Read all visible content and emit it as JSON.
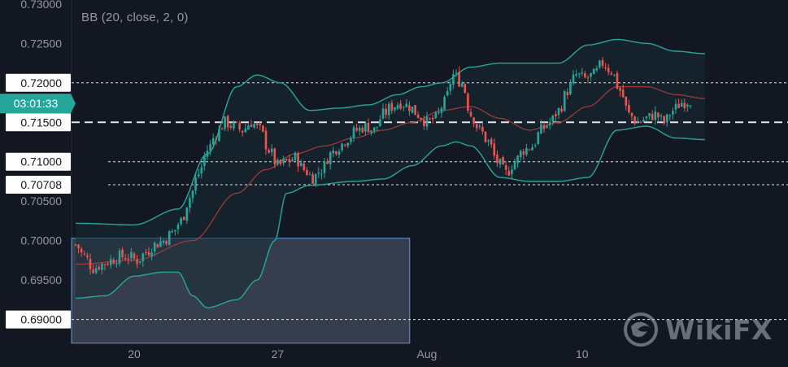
{
  "indicator": {
    "label": "BB (20, close, 2, 0)"
  },
  "watermark": {
    "text": "WikiFX",
    "icon": "wikifx-logo-icon"
  },
  "colors": {
    "background": "#131722",
    "up": "#26a69a",
    "down": "#ef5350",
    "bb_band": "#26a69a",
    "bb_basis": "#a83a3a",
    "bb_fill": "#1a2c33",
    "price_tag_bg": "#26a69a",
    "tick_text": "#9598a1",
    "label_bg": "#ffffff",
    "label_text": "#131722",
    "zone_fill": "#434c5e",
    "zone_border": "#5b9bd5"
  },
  "chart_data": {
    "type": "candlestick",
    "y_range": [
      0.688,
      0.7305
    ],
    "y_ticks": [
      "0.73000",
      "0.72500",
      "0.72000",
      "0.71500",
      "0.71000",
      "0.70500",
      "0.70000",
      "0.69500",
      "0.69000"
    ],
    "x_labels": [
      {
        "label": "20",
        "index": 20
      },
      {
        "label": "27",
        "index": 69
      },
      {
        "label": "Aug",
        "index": 120
      },
      {
        "label": "10",
        "index": 173
      }
    ],
    "countdown_label": "03:01:33",
    "current_price": 0.718,
    "level_labels": [
      {
        "label": "0.72000",
        "value": 0.72,
        "style": "dotted"
      },
      {
        "label": "0.71500",
        "value": 0.715,
        "style": "dashed"
      },
      {
        "label": "0.71000",
        "value": 0.71,
        "style": "dotted"
      },
      {
        "label": "0.70708",
        "value": 0.70708,
        "style": "dotted"
      },
      {
        "label": "0.69000",
        "value": 0.69,
        "style": "dotted"
      }
    ],
    "zone": {
      "x_start": 0,
      "x_end": 103,
      "y_top": 0.7003,
      "y_bottom": 0.687
    },
    "close_anchors": [
      [
        0,
        0.6995
      ],
      [
        3,
        0.698
      ],
      [
        6,
        0.6965
      ],
      [
        9,
        0.697
      ],
      [
        12,
        0.6975
      ],
      [
        15,
        0.698
      ],
      [
        18,
        0.698
      ],
      [
        21,
        0.6975
      ],
      [
        24,
        0.6985
      ],
      [
        27,
        0.6995
      ],
      [
        30,
        0.7
      ],
      [
        33,
        0.701
      ],
      [
        36,
        0.7025
      ],
      [
        39,
        0.7055
      ],
      [
        42,
        0.7085
      ],
      [
        45,
        0.7115
      ],
      [
        48,
        0.7135
      ],
      [
        51,
        0.715
      ],
      [
        54,
        0.7145
      ],
      [
        57,
        0.714
      ],
      [
        60,
        0.715
      ],
      [
        63,
        0.714
      ],
      [
        66,
        0.7115
      ],
      [
        69,
        0.7095
      ],
      [
        72,
        0.71
      ],
      [
        75,
        0.7105
      ],
      [
        78,
        0.709
      ],
      [
        81,
        0.708
      ],
      [
        84,
        0.709
      ],
      [
        87,
        0.711
      ],
      [
        90,
        0.712
      ],
      [
        93,
        0.713
      ],
      [
        96,
        0.714
      ],
      [
        99,
        0.7145
      ],
      [
        102,
        0.714
      ],
      [
        105,
        0.716
      ],
      [
        108,
        0.717
      ],
      [
        111,
        0.7175
      ],
      [
        114,
        0.717
      ],
      [
        117,
        0.716
      ],
      [
        120,
        0.715
      ],
      [
        123,
        0.7155
      ],
      [
        126,
        0.7175
      ],
      [
        129,
        0.721
      ],
      [
        132,
        0.72
      ],
      [
        135,
        0.716
      ],
      [
        138,
        0.714
      ],
      [
        141,
        0.7125
      ],
      [
        144,
        0.71
      ],
      [
        147,
        0.7085
      ],
      [
        150,
        0.71
      ],
      [
        153,
        0.7115
      ],
      [
        156,
        0.712
      ],
      [
        159,
        0.714
      ],
      [
        162,
        0.715
      ],
      [
        165,
        0.7165
      ],
      [
        168,
        0.719
      ],
      [
        171,
        0.721
      ],
      [
        174,
        0.7205
      ],
      [
        177,
        0.721
      ],
      [
        180,
        0.7225
      ],
      [
        183,
        0.7215
      ],
      [
        186,
        0.719
      ],
      [
        189,
        0.716
      ],
      [
        192,
        0.715
      ],
      [
        195,
        0.7155
      ],
      [
        198,
        0.716
      ],
      [
        201,
        0.715
      ],
      [
        204,
        0.7165
      ],
      [
        207,
        0.7175
      ],
      [
        210,
        0.7178
      ]
    ],
    "bb_basis": [
      [
        0,
        0.697
      ],
      [
        20,
        0.6975
      ],
      [
        40,
        0.7
      ],
      [
        55,
        0.706
      ],
      [
        65,
        0.709
      ],
      [
        75,
        0.711
      ],
      [
        85,
        0.712
      ],
      [
        95,
        0.713
      ],
      [
        105,
        0.714
      ],
      [
        115,
        0.715
      ],
      [
        125,
        0.7165
      ],
      [
        135,
        0.717
      ],
      [
        145,
        0.7155
      ],
      [
        155,
        0.714
      ],
      [
        165,
        0.715
      ],
      [
        175,
        0.717
      ],
      [
        185,
        0.7195
      ],
      [
        195,
        0.7195
      ],
      [
        205,
        0.7185
      ],
      [
        215,
        0.718
      ]
    ],
    "bb_upper": [
      [
        0,
        0.7022
      ],
      [
        20,
        0.702
      ],
      [
        35,
        0.704
      ],
      [
        45,
        0.711
      ],
      [
        55,
        0.7195
      ],
      [
        62,
        0.721
      ],
      [
        70,
        0.72
      ],
      [
        80,
        0.7165
      ],
      [
        90,
        0.7168
      ],
      [
        100,
        0.7172
      ],
      [
        110,
        0.7185
      ],
      [
        118,
        0.7195
      ],
      [
        125,
        0.72
      ],
      [
        135,
        0.722
      ],
      [
        145,
        0.7225
      ],
      [
        155,
        0.7225
      ],
      [
        165,
        0.7225
      ],
      [
        175,
        0.7248
      ],
      [
        185,
        0.7255
      ],
      [
        195,
        0.725
      ],
      [
        205,
        0.724
      ],
      [
        215,
        0.7237
      ]
    ],
    "bb_lower": [
      [
        0,
        0.6927
      ],
      [
        10,
        0.693
      ],
      [
        20,
        0.6955
      ],
      [
        30,
        0.696
      ],
      [
        35,
        0.696
      ],
      [
        40,
        0.693
      ],
      [
        45,
        0.6915
      ],
      [
        55,
        0.6925
      ],
      [
        62,
        0.695
      ],
      [
        68,
        0.7
      ],
      [
        72,
        0.706
      ],
      [
        80,
        0.707
      ],
      [
        95,
        0.7075
      ],
      [
        105,
        0.7078
      ],
      [
        115,
        0.7095
      ],
      [
        125,
        0.712
      ],
      [
        130,
        0.7125
      ],
      [
        135,
        0.712
      ],
      [
        145,
        0.708
      ],
      [
        155,
        0.7075
      ],
      [
        165,
        0.7075
      ],
      [
        175,
        0.708
      ],
      [
        185,
        0.714
      ],
      [
        195,
        0.7145
      ],
      [
        205,
        0.713
      ],
      [
        215,
        0.7128
      ]
    ]
  }
}
